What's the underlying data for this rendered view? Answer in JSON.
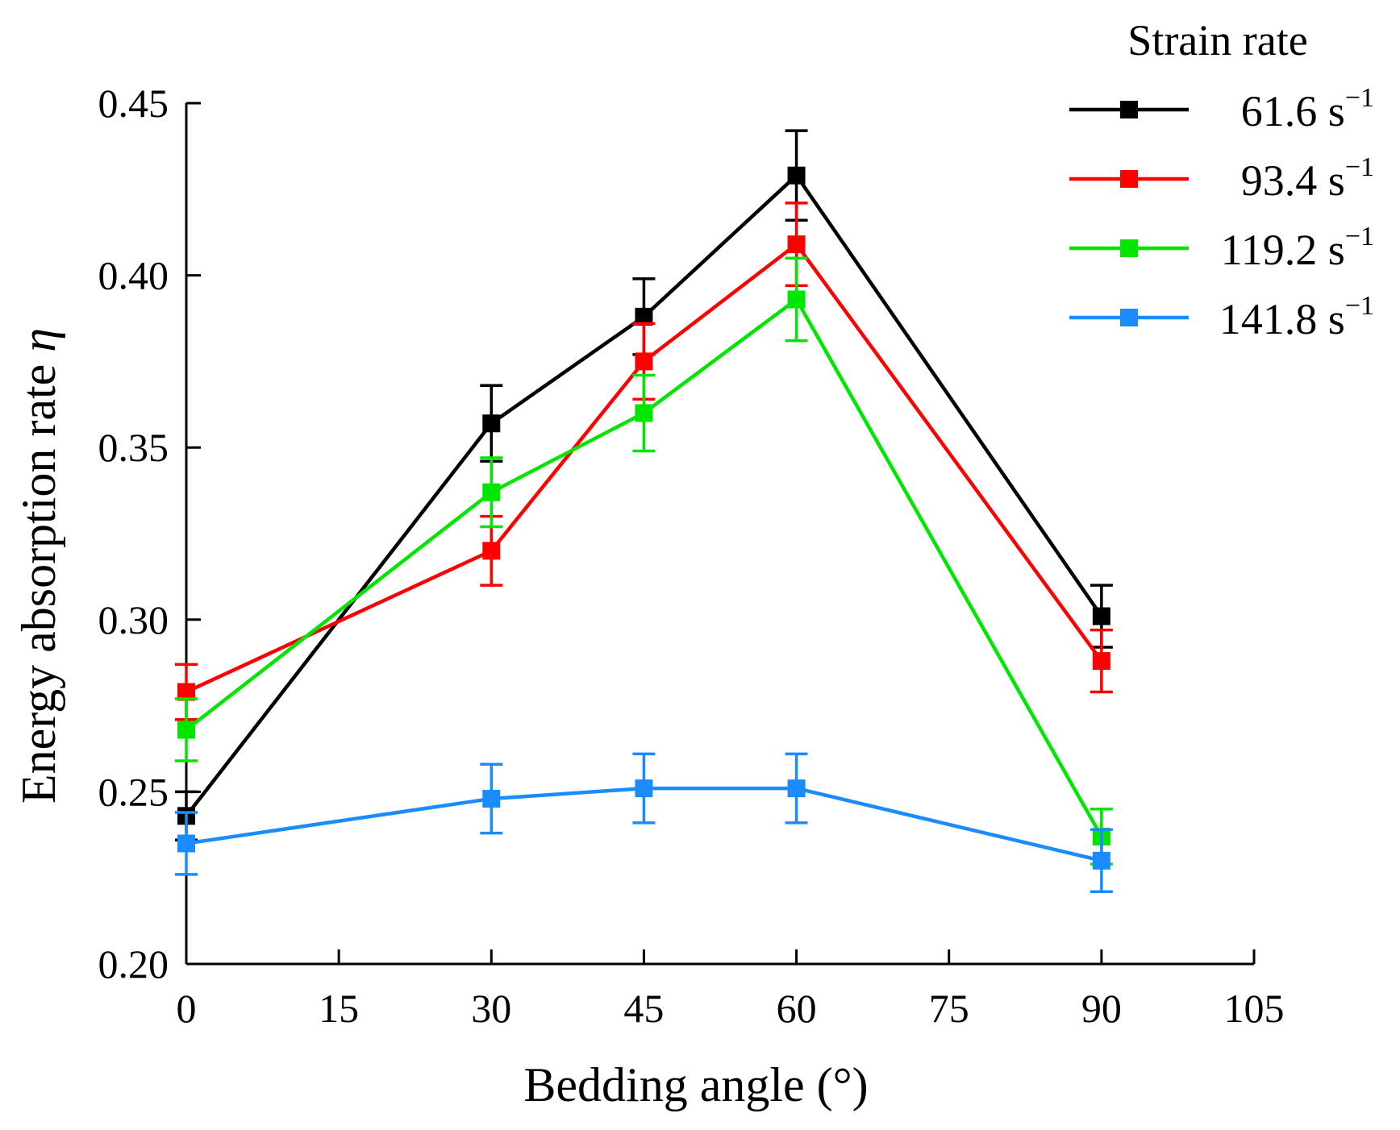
{
  "chart_data": {
    "type": "line",
    "title": "",
    "xlabel": "Bedding angle (°)",
    "ylabel": "Energy absorption rate",
    "ylabel_symbol": "η",
    "xlim": [
      0,
      105
    ],
    "ylim": [
      0.2,
      0.45
    ],
    "x_ticks": [
      0,
      15,
      30,
      45,
      60,
      75,
      90,
      105
    ],
    "x_tick_labels": [
      "0",
      "15",
      "30",
      "45",
      "60",
      "75",
      "90",
      "105"
    ],
    "y_ticks": [
      0.2,
      0.25,
      0.3,
      0.35,
      0.4,
      0.45
    ],
    "y_tick_labels": [
      "0.20",
      "0.25",
      "0.30",
      "0.35",
      "0.40",
      "0.45"
    ],
    "x": [
      0,
      30,
      45,
      60,
      90
    ],
    "legend": {
      "title": "Strain rate",
      "placement": "top-right outside"
    },
    "series": [
      {
        "name": "61.6",
        "unit": "s",
        "exponent": "−1",
        "color": "#000000",
        "values": [
          0.243,
          0.357,
          0.388,
          0.429,
          0.301
        ],
        "errors": [
          0.007,
          0.011,
          0.011,
          0.013,
          0.009
        ]
      },
      {
        "name": "93.4",
        "unit": "s",
        "exponent": "−1",
        "color": "#ff0000",
        "values": [
          0.279,
          0.32,
          0.375,
          0.409,
          0.288
        ],
        "errors": [
          0.008,
          0.01,
          0.011,
          0.012,
          0.009
        ]
      },
      {
        "name": "119.2",
        "unit": "s",
        "exponent": "−1",
        "color": "#00e600",
        "values": [
          0.268,
          0.337,
          0.36,
          0.393,
          0.237
        ],
        "errors": [
          0.009,
          0.01,
          0.011,
          0.012,
          0.008
        ]
      },
      {
        "name": "141.8",
        "unit": "s",
        "exponent": "−1",
        "color": "#1a8cff",
        "values": [
          0.235,
          0.248,
          0.251,
          0.251,
          0.23
        ],
        "errors": [
          0.009,
          0.01,
          0.01,
          0.01,
          0.009
        ]
      }
    ]
  }
}
